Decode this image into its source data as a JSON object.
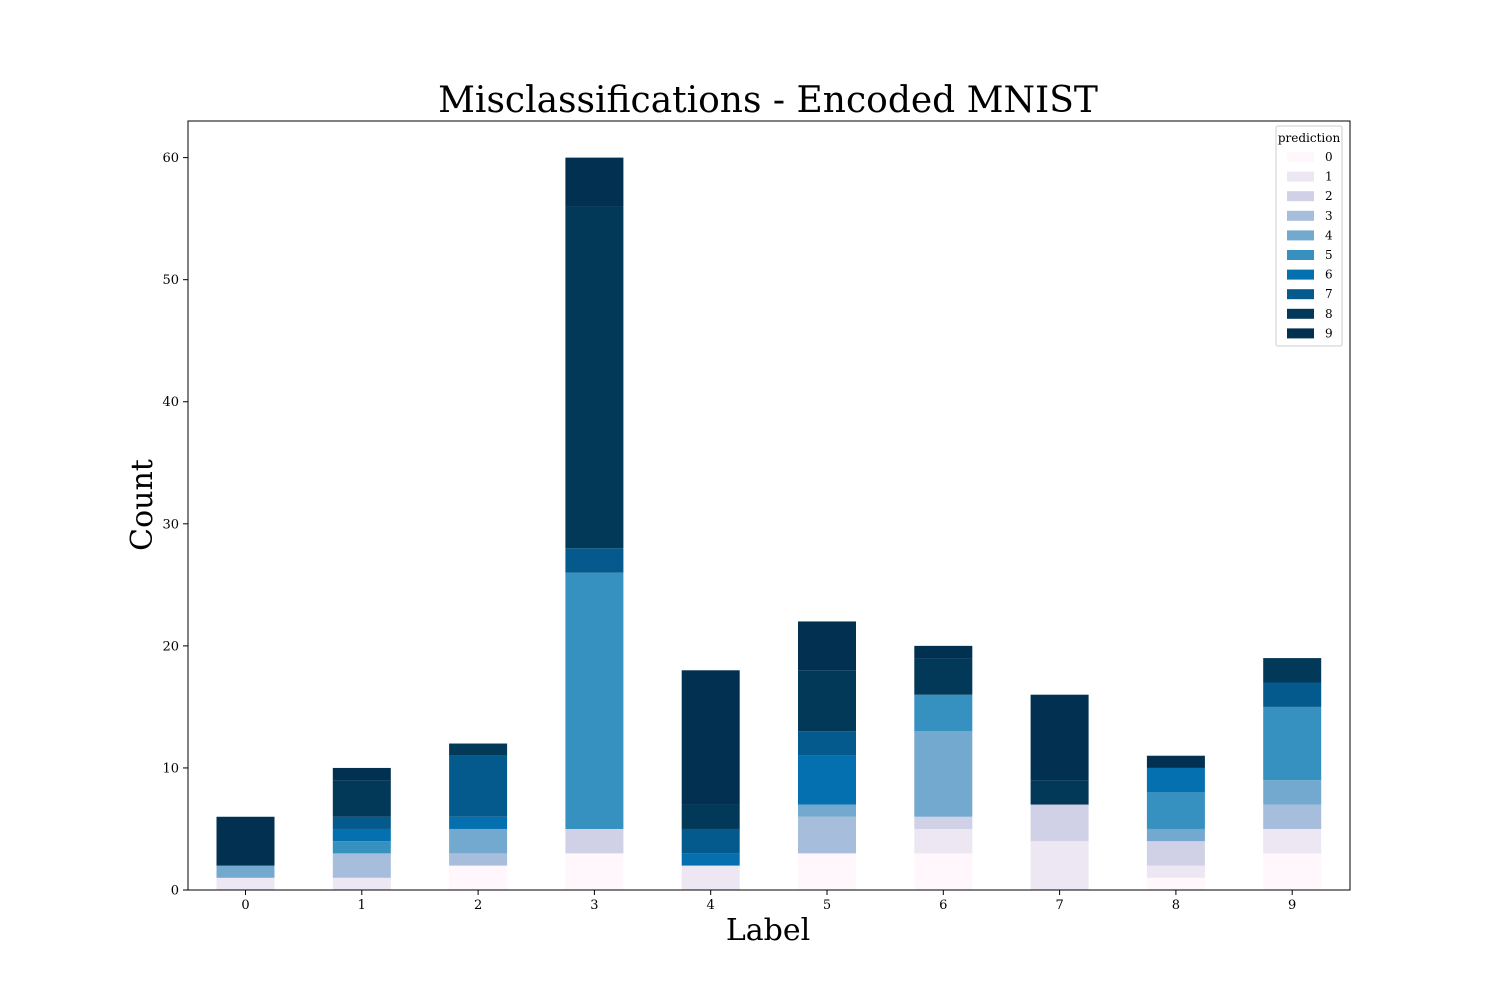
{
  "chart_data": {
    "type": "bar",
    "stacked": true,
    "title": "Misclassifications - Encoded MNIST",
    "xlabel": "Label",
    "ylabel": "Count",
    "categories": [
      "0",
      "1",
      "2",
      "3",
      "4",
      "5",
      "6",
      "7",
      "8",
      "9"
    ],
    "ylim": [
      0,
      63
    ],
    "yticks": [
      0,
      10,
      20,
      30,
      40,
      50,
      60
    ],
    "grid": false,
    "legend": {
      "title": "prediction",
      "placement": "top-right"
    },
    "series": [
      {
        "name": "0",
        "color": "#fff7fb",
        "values": [
          0,
          0,
          2,
          3,
          0,
          3,
          3,
          0,
          1,
          3
        ]
      },
      {
        "name": "1",
        "color": "#ece7f2",
        "values": [
          1,
          1,
          0,
          0,
          2,
          0,
          2,
          4,
          1,
          2
        ]
      },
      {
        "name": "2",
        "color": "#d0d1e6",
        "values": [
          0,
          0,
          0,
          2,
          0,
          0,
          1,
          3,
          2,
          0
        ]
      },
      {
        "name": "3",
        "color": "#a6bddb",
        "values": [
          0,
          2,
          1,
          0,
          0,
          3,
          0,
          0,
          0,
          2
        ]
      },
      {
        "name": "4",
        "color": "#74a9cf",
        "values": [
          1,
          0,
          2,
          0,
          0,
          1,
          7,
          0,
          1,
          2
        ]
      },
      {
        "name": "5",
        "color": "#3690c0",
        "values": [
          0,
          1,
          0,
          21,
          0,
          0,
          3,
          0,
          3,
          6
        ]
      },
      {
        "name": "6",
        "color": "#0570b0",
        "values": [
          0,
          1,
          1,
          0,
          1,
          4,
          0,
          0,
          2,
          0
        ]
      },
      {
        "name": "7",
        "color": "#045a8d",
        "values": [
          0,
          1,
          5,
          2,
          2,
          2,
          0,
          0,
          0,
          2
        ]
      },
      {
        "name": "8",
        "color": "#023858",
        "values": [
          0,
          3,
          1,
          28,
          2,
          5,
          3,
          2,
          0,
          2
        ]
      },
      {
        "name": "9",
        "color": "#013050",
        "values": [
          4,
          1,
          0,
          4,
          11,
          4,
          1,
          7,
          1,
          0
        ]
      }
    ]
  }
}
